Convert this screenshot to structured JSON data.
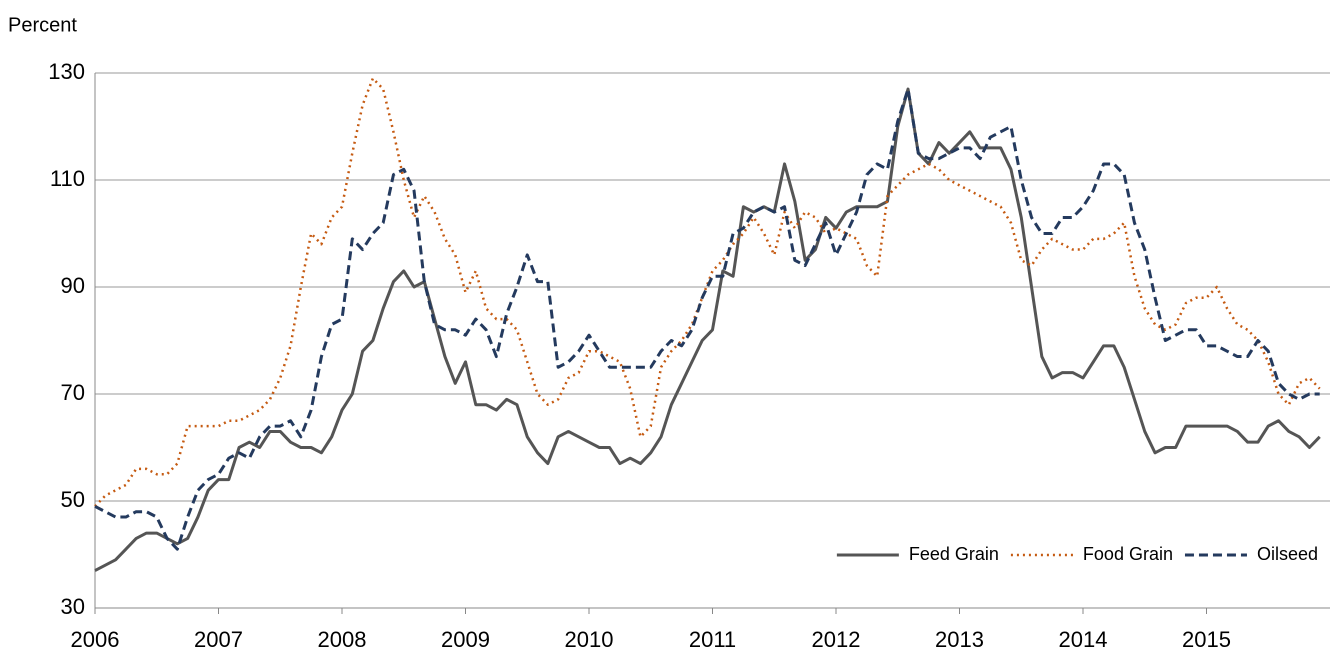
{
  "chart_data": {
    "type": "line",
    "y_label": "Percent",
    "categories": [
      "2006",
      null,
      null,
      null,
      null,
      null,
      null,
      null,
      null,
      null,
      null,
      null,
      "2007",
      null,
      null,
      null,
      null,
      null,
      null,
      null,
      null,
      null,
      null,
      null,
      "2008",
      null,
      null,
      null,
      null,
      null,
      null,
      null,
      null,
      null,
      null,
      null,
      "2009",
      null,
      null,
      null,
      null,
      null,
      null,
      null,
      null,
      null,
      null,
      null,
      "2010",
      null,
      null,
      null,
      null,
      null,
      null,
      null,
      null,
      null,
      null,
      null,
      "2011",
      null,
      null,
      null,
      null,
      null,
      null,
      null,
      null,
      null,
      null,
      null,
      "2012",
      null,
      null,
      null,
      null,
      null,
      null,
      null,
      null,
      null,
      null,
      null,
      "2013",
      null,
      null,
      null,
      null,
      null,
      null,
      null,
      null,
      null,
      null,
      null,
      "2014",
      null,
      null,
      null,
      null,
      null,
      null,
      null,
      null,
      null,
      null,
      null,
      "2015",
      null,
      null,
      null,
      null,
      null,
      null,
      null,
      null,
      null,
      null,
      null
    ],
    "series": [
      {
        "name": "Feed Grain",
        "color": "#555555",
        "line_style": "solid",
        "values": [
          37,
          38,
          39,
          41,
          43,
          44,
          44,
          43,
          42,
          43,
          47,
          52,
          54,
          54,
          60,
          61,
          60,
          63,
          63,
          61,
          60,
          60,
          59,
          62,
          67,
          70,
          78,
          80,
          86,
          91,
          93,
          90,
          91,
          84,
          77,
          72,
          76,
          68,
          68,
          67,
          69,
          68,
          62,
          59,
          57,
          62,
          63,
          62,
          61,
          60,
          60,
          57,
          58,
          57,
          59,
          62,
          68,
          72,
          76,
          80,
          82,
          93,
          92,
          105,
          104,
          105,
          104,
          113,
          106,
          95,
          97,
          103,
          101,
          104,
          105,
          105,
          105,
          106,
          120,
          127,
          115,
          113,
          117,
          115,
          117,
          119,
          116,
          116,
          116,
          112,
          103,
          90,
          77,
          73,
          74,
          74,
          73,
          76,
          79,
          79,
          75,
          69,
          63,
          59,
          60,
          60,
          64,
          64,
          64,
          64,
          64,
          63,
          61,
          61,
          64,
          65,
          63,
          62,
          60,
          62
        ]
      },
      {
        "name": "Food Grain",
        "color": "#c55a11",
        "line_style": "dotted",
        "values": [
          49,
          51,
          52,
          53,
          56,
          56,
          55,
          55,
          57,
          64,
          64,
          64,
          64,
          65,
          65,
          66,
          67,
          69,
          73,
          79,
          90,
          100,
          98,
          103,
          105,
          115,
          124,
          129,
          127,
          119,
          110,
          103,
          107,
          104,
          99,
          96,
          89,
          93,
          86,
          84,
          84,
          82,
          76,
          70,
          68,
          69,
          73,
          74,
          78,
          78,
          77,
          76,
          71,
          62,
          64,
          75,
          78,
          80,
          83,
          88,
          93,
          95,
          98,
          100,
          103,
          100,
          96,
          104,
          101,
          104,
          103,
          100,
          101,
          100,
          99,
          94,
          92,
          107,
          109,
          111,
          112,
          113,
          112,
          110,
          109,
          108,
          107,
          106,
          105,
          102,
          95,
          94,
          97,
          99,
          98,
          97,
          97,
          99,
          99,
          100,
          102,
          92,
          86,
          83,
          82,
          83,
          87,
          88,
          88,
          90,
          86,
          83,
          82,
          80,
          76,
          70,
          68,
          72,
          73,
          71
        ]
      },
      {
        "name": "Oilseed",
        "color": "#243a5e",
        "line_style": "dashed",
        "values": [
          49,
          48,
          47,
          47,
          48,
          48,
          47,
          43,
          41,
          47,
          52,
          54,
          55,
          58,
          59,
          58,
          62,
          64,
          64,
          65,
          62,
          67,
          77,
          83,
          84,
          99,
          97,
          100,
          102,
          111,
          112,
          108,
          91,
          83,
          82,
          82,
          81,
          84,
          82,
          77,
          85,
          90,
          96,
          91,
          91,
          75,
          76,
          78,
          81,
          78,
          75,
          75,
          75,
          75,
          75,
          78,
          80,
          79,
          82,
          88,
          92,
          92,
          100,
          101,
          104,
          105,
          104,
          105,
          95,
          94,
          98,
          102,
          96,
          100,
          104,
          111,
          113,
          112,
          121,
          127,
          115,
          114,
          114,
          115,
          116,
          116,
          114,
          118,
          119,
          120,
          110,
          103,
          100,
          100,
          103,
          103,
          105,
          108,
          113,
          113,
          111,
          102,
          97,
          88,
          80,
          81,
          82,
          82,
          79,
          79,
          78,
          77,
          77,
          80,
          78,
          72,
          70,
          69,
          70,
          70
        ]
      }
    ],
    "ylim": [
      30,
      130
    ],
    "yticks": [
      30,
      50,
      70,
      90,
      110,
      130
    ],
    "grid": true,
    "legend": "lower right"
  }
}
